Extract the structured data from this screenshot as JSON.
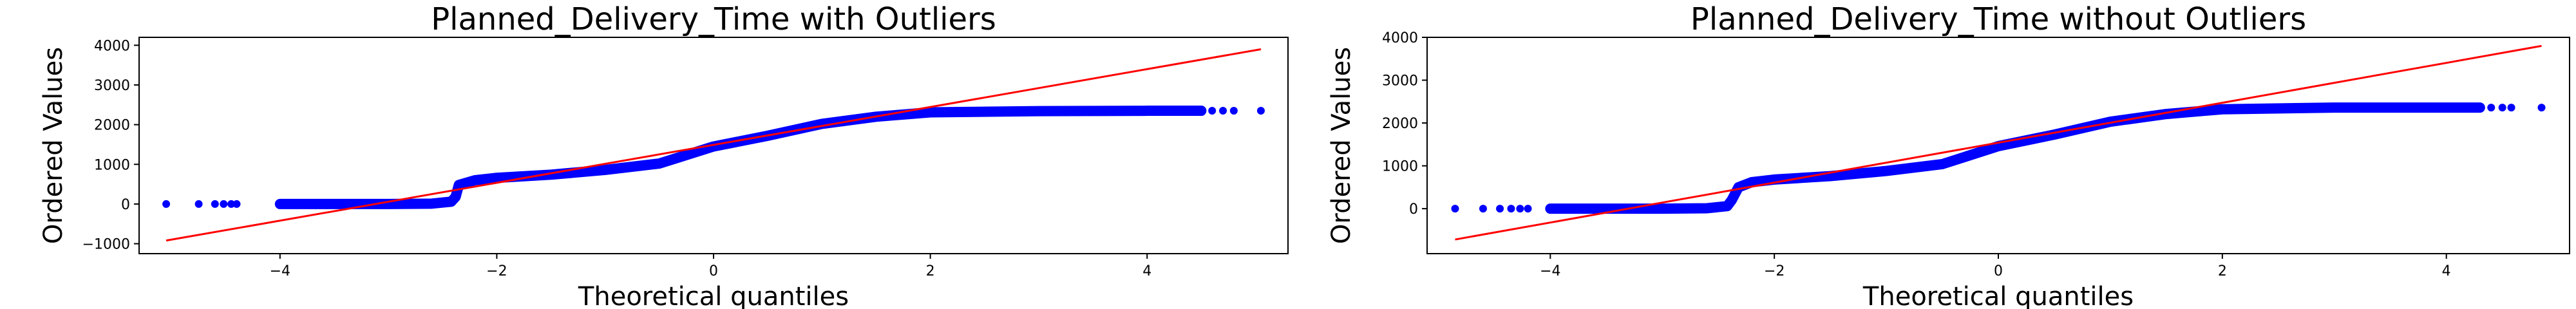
{
  "chart_data": [
    {
      "type": "scatter",
      "title": "Planned_Delivery_Time with Outliers",
      "xlabel": "Theoretical quantiles",
      "ylabel": "Ordered Values",
      "xlim": [
        -5.3,
        5.3
      ],
      "ylim": [
        -1250,
        4200
      ],
      "xticks": [
        -4,
        -2,
        0,
        2,
        4
      ],
      "yticks": [
        -1000,
        0,
        1000,
        2000,
        3000,
        4000
      ],
      "grid": false,
      "marker_color": "#0000ff",
      "line_color": "#ff0000",
      "reference_line": {
        "x": [
          -5.05,
          5.05
        ],
        "y": [
          -920,
          3900
        ]
      },
      "curve_points": [
        [
          -4.0,
          0
        ],
        [
          -3.0,
          0
        ],
        [
          -2.6,
          10
        ],
        [
          -2.42,
          60
        ],
        [
          -2.38,
          180
        ],
        [
          -2.35,
          480
        ],
        [
          -2.2,
          600
        ],
        [
          -2.0,
          660
        ],
        [
          -1.5,
          740
        ],
        [
          -1.0,
          860
        ],
        [
          -0.5,
          1020
        ],
        [
          0.0,
          1450
        ],
        [
          0.5,
          1720
        ],
        [
          1.0,
          2020
        ],
        [
          1.5,
          2200
        ],
        [
          2.0,
          2310
        ],
        [
          3.0,
          2340
        ],
        [
          4.0,
          2350
        ],
        [
          4.5,
          2350
        ]
      ],
      "scatter_points": [
        [
          -5.05,
          0
        ],
        [
          -4.75,
          0
        ],
        [
          -4.6,
          0
        ],
        [
          -4.52,
          0
        ],
        [
          -4.45,
          0
        ],
        [
          -4.4,
          0
        ],
        [
          4.6,
          2350
        ],
        [
          4.7,
          2350
        ],
        [
          4.8,
          2350
        ],
        [
          5.05,
          2350
        ]
      ]
    },
    {
      "type": "scatter",
      "title": "Planned_Delivery_Time without Outliers",
      "xlabel": "Theoretical quantiles",
      "ylabel": "Ordered Values",
      "xlim": [
        -5.1,
        5.1
      ],
      "ylim": [
        -1050,
        4000
      ],
      "xticks": [
        -4,
        -2,
        0,
        2,
        4
      ],
      "yticks": [
        0,
        1000,
        2000,
        3000,
        4000
      ],
      "grid": false,
      "marker_color": "#0000ff",
      "line_color": "#ff0000",
      "reference_line": {
        "x": [
          -4.85,
          4.85
        ],
        "y": [
          -720,
          3800
        ]
      },
      "curve_points": [
        [
          -4.0,
          0
        ],
        [
          -3.0,
          0
        ],
        [
          -2.6,
          10
        ],
        [
          -2.42,
          60
        ],
        [
          -2.38,
          200
        ],
        [
          -2.32,
          500
        ],
        [
          -2.2,
          620
        ],
        [
          -2.0,
          680
        ],
        [
          -1.5,
          760
        ],
        [
          -1.0,
          880
        ],
        [
          -0.5,
          1040
        ],
        [
          0.0,
          1460
        ],
        [
          0.5,
          1730
        ],
        [
          1.0,
          2030
        ],
        [
          1.5,
          2210
        ],
        [
          2.0,
          2320
        ],
        [
          3.0,
          2360
        ],
        [
          4.0,
          2360
        ],
        [
          4.3,
          2360
        ]
      ],
      "scatter_points": [
        [
          -4.85,
          0
        ],
        [
          -4.6,
          0
        ],
        [
          -4.45,
          0
        ],
        [
          -4.35,
          0
        ],
        [
          -4.27,
          0
        ],
        [
          -4.2,
          0
        ],
        [
          4.4,
          2360
        ],
        [
          4.5,
          2360
        ],
        [
          4.58,
          2360
        ],
        [
          4.85,
          2360
        ]
      ]
    }
  ]
}
